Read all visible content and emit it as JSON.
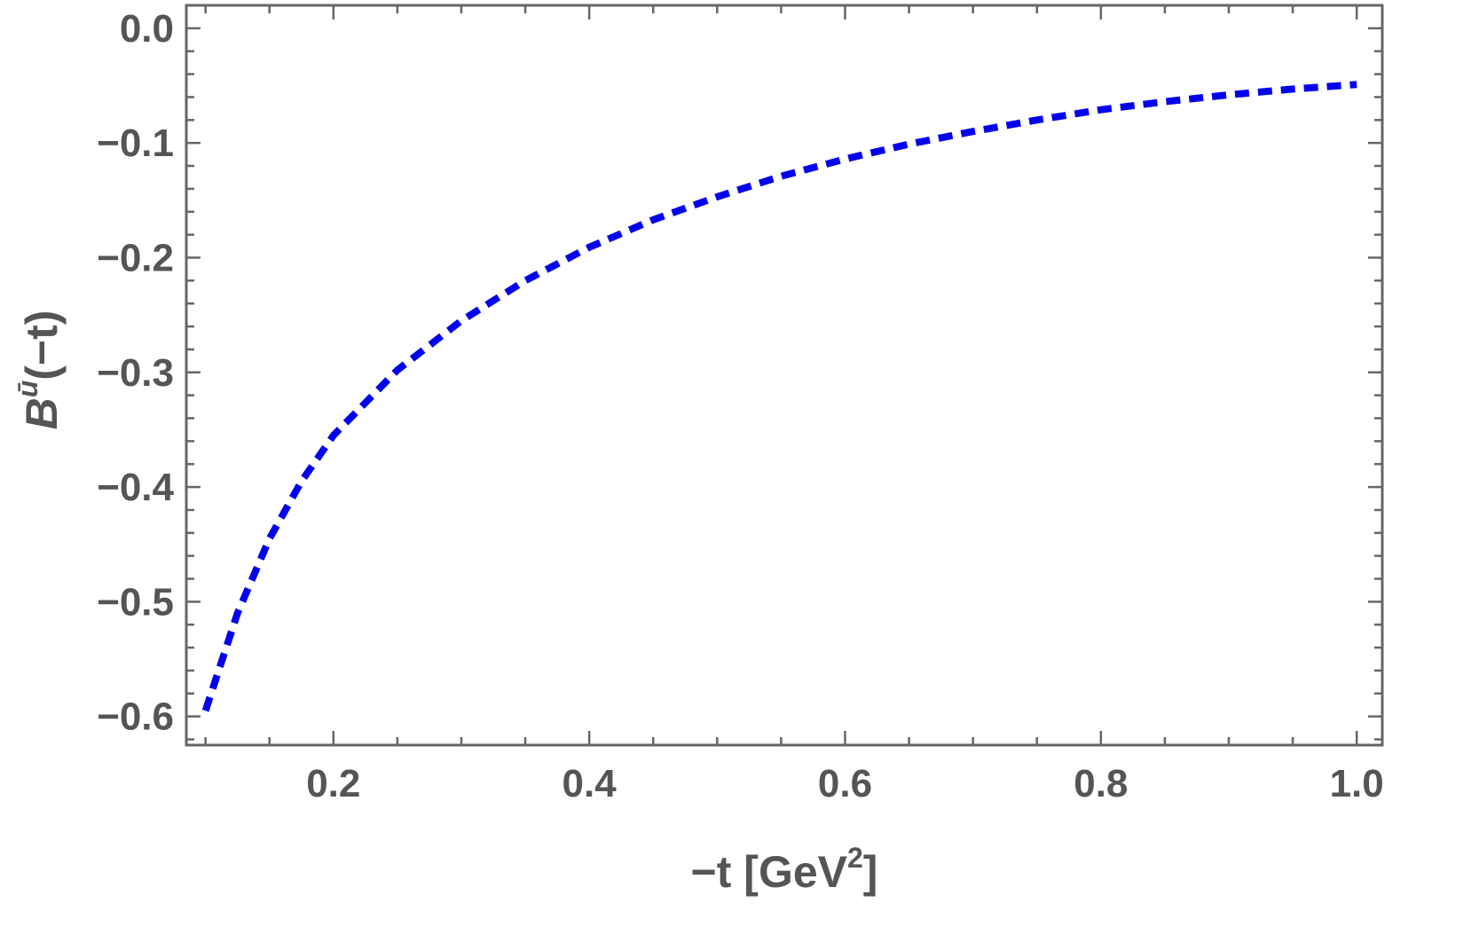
{
  "chart_data": {
    "type": "line",
    "title": "",
    "xlabel_main": "−t [GeV",
    "xlabel_sup": "2",
    "xlabel_close": "]",
    "ylabel_base": "B",
    "ylabel_sup": "ū",
    "ylabel_arg": "(−t)",
    "xlim": [
      0.085,
      1.02
    ],
    "ylim": [
      -0.625,
      0.02
    ],
    "xticks": [
      {
        "value": 0.2,
        "label": "0.2"
      },
      {
        "value": 0.4,
        "label": "0.4"
      },
      {
        "value": 0.6,
        "label": "0.6"
      },
      {
        "value": 0.8,
        "label": "0.8"
      },
      {
        "value": 1.0,
        "label": "1.0"
      }
    ],
    "yticks": [
      {
        "value": 0.0,
        "label": "0.0"
      },
      {
        "value": -0.1,
        "label": "−0.1"
      },
      {
        "value": -0.2,
        "label": "−0.2"
      },
      {
        "value": -0.3,
        "label": "−0.3"
      },
      {
        "value": -0.4,
        "label": "−0.4"
      },
      {
        "value": -0.5,
        "label": "−0.5"
      },
      {
        "value": -0.6,
        "label": "−0.6"
      }
    ],
    "grid": false,
    "series": [
      {
        "color": "#0000ee",
        "style": "dashed",
        "x": [
          0.1,
          0.125,
          0.15,
          0.175,
          0.2,
          0.25,
          0.3,
          0.35,
          0.4,
          0.45,
          0.5,
          0.55,
          0.6,
          0.65,
          0.7,
          0.75,
          0.8,
          0.85,
          0.9,
          0.95,
          1.0
        ],
        "y": [
          -0.595,
          -0.51,
          -0.445,
          -0.395,
          -0.355,
          -0.298,
          -0.255,
          -0.22,
          -0.191,
          -0.167,
          -0.147,
          -0.129,
          -0.114,
          -0.101,
          -0.09,
          -0.08,
          -0.071,
          -0.064,
          -0.058,
          -0.053,
          -0.049
        ]
      }
    ]
  }
}
